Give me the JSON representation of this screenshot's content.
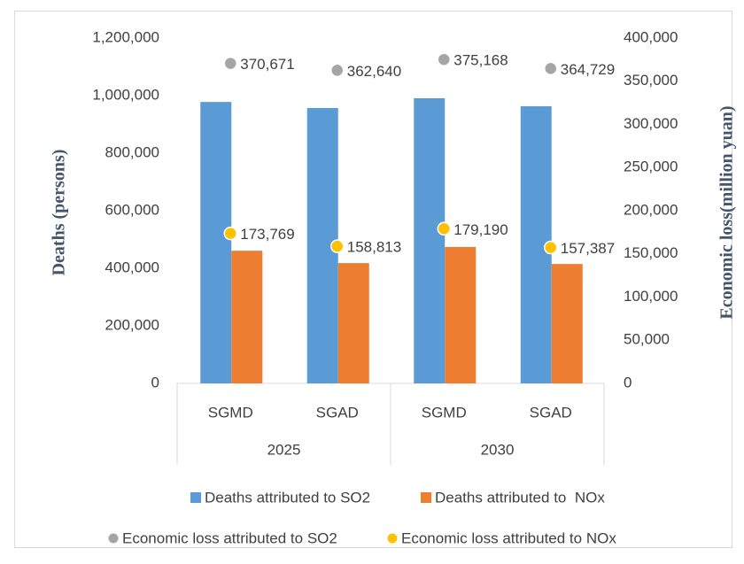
{
  "chart_data": {
    "type": "bar",
    "categories": [
      "SGMD",
      "SGAD",
      "SGMD",
      "SGAD"
    ],
    "groups": [
      "2025",
      "2030"
    ],
    "ylabel": "Deaths (persons)",
    "y2label": "Economic loss(million yuan)",
    "ylim": [
      0,
      1200000
    ],
    "yticks": [
      0,
      {
        "value": 200000,
        "label": "200,000"
      },
      {
        "value": 400000,
        "label": "400,000"
      },
      {
        "value": 600000,
        "label": "600,000"
      },
      {
        "value": 800000,
        "label": "800,000"
      },
      {
        "value": 1000000,
        "label": "1,000,000"
      },
      {
        "value": 1200000,
        "label": "1,200,000"
      }
    ],
    "y2lim": [
      0,
      400000
    ],
    "y2ticks": [
      0,
      {
        "value": 50000,
        "label": "50,000"
      },
      {
        "value": 100000,
        "label": "100,000"
      },
      {
        "value": 150000,
        "label": "150,000"
      },
      {
        "value": 200000,
        "label": "200,000"
      },
      {
        "value": 250000,
        "label": "250,000"
      },
      {
        "value": 300000,
        "label": "300,000"
      },
      {
        "value": 350000,
        "label": "350,000"
      },
      {
        "value": 400000,
        "label": "400,000"
      }
    ],
    "series": [
      {
        "name": "Deaths attributed to SO2",
        "color": "#5b9bd5",
        "type": "bar",
        "values": [
          978000,
          957000,
          991000,
          963000
        ]
      },
      {
        "name": "Deaths attributed to  NOx",
        "color": "#ed7d31",
        "type": "bar",
        "values": [
          461000,
          418000,
          474000,
          415000
        ]
      },
      {
        "name": "Economic loss attributed to SO2",
        "color": "#a5a5a5",
        "type": "scatter",
        "axis": "y2",
        "values": [
          370671,
          362640,
          375168,
          364729
        ],
        "value_labels": [
          "370,671",
          "362,640",
          "375,168",
          "364,729"
        ]
      },
      {
        "name": "Economic loss attributed to NOx",
        "color": "#ffc000",
        "type": "scatter",
        "axis": "y2",
        "values": [
          173769,
          158813,
          179190,
          157387
        ],
        "value_labels": [
          "173,769",
          "158,813",
          "179,190",
          "157,387"
        ]
      }
    ]
  }
}
